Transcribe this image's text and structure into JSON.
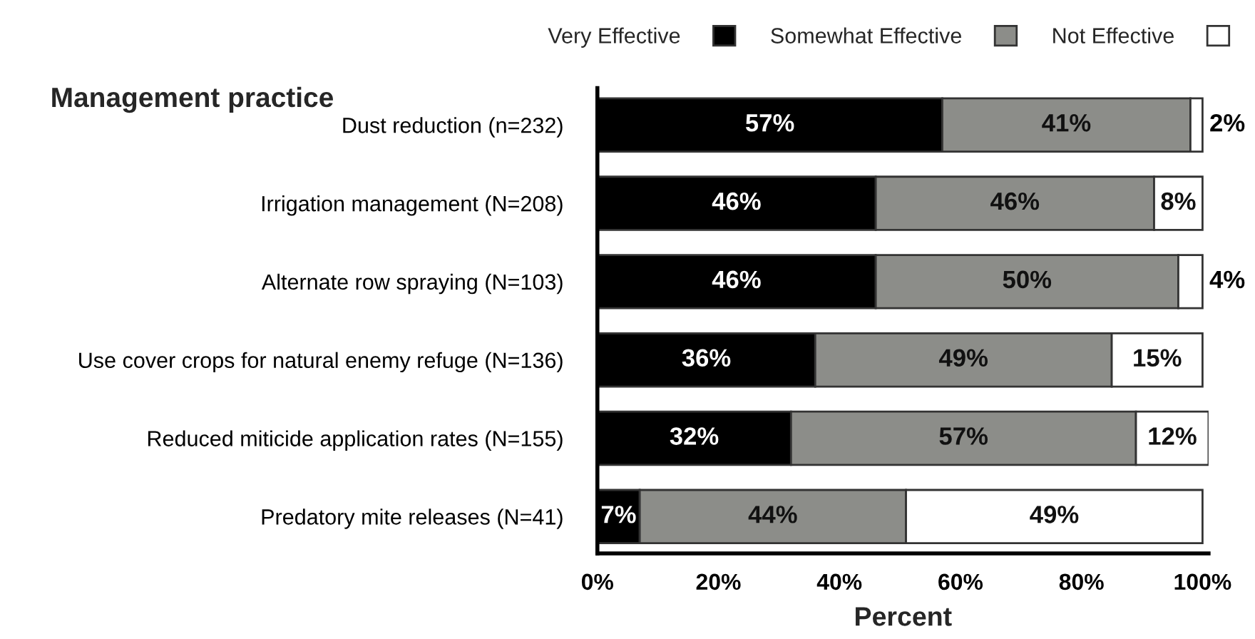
{
  "chart_data": {
    "type": "bar",
    "orientation": "horizontal",
    "stacked": true,
    "ylabel": "Management practice",
    "xlabel": "Percent",
    "categories": [
      "Dust reduction (n=232)",
      "Irrigation management (N=208)",
      "Alternate row spraying (N=103)",
      "Use cover crops for natural enemy refuge (N=136)",
      "Reduced miticide application rates (N=155)",
      "Predatory mite releases (N=41)"
    ],
    "series": [
      {
        "name": "Very Effective",
        "color": "#000000",
        "values": [
          57,
          46,
          46,
          36,
          32,
          7
        ],
        "value_labels": [
          "57%",
          "46%",
          "46%",
          "36%",
          "32%",
          "7%"
        ]
      },
      {
        "name": "Somewhat Effective",
        "color": "#8c8d89",
        "values": [
          41,
          46,
          50,
          49,
          57,
          44
        ],
        "value_labels": [
          "41%",
          "46%",
          "50%",
          "49%",
          "57%",
          "44%"
        ]
      },
      {
        "name": "Not Effective",
        "color": "#ffffff",
        "values": [
          2,
          8,
          4,
          15,
          12,
          49
        ],
        "value_labels": [
          "2%",
          "8%",
          "4%",
          "15%",
          "12%",
          "49%"
        ]
      }
    ],
    "xlim": [
      0,
      101
    ],
    "xticks": [
      {
        "value": 0,
        "label": "0%"
      },
      {
        "value": 20,
        "label": "20%"
      },
      {
        "value": 40,
        "label": "40%"
      },
      {
        "value": 60,
        "label": "60%"
      },
      {
        "value": 80,
        "label": "80%"
      },
      {
        "value": 100,
        "label": "100%"
      }
    ],
    "legend": "top",
    "grid": false
  }
}
